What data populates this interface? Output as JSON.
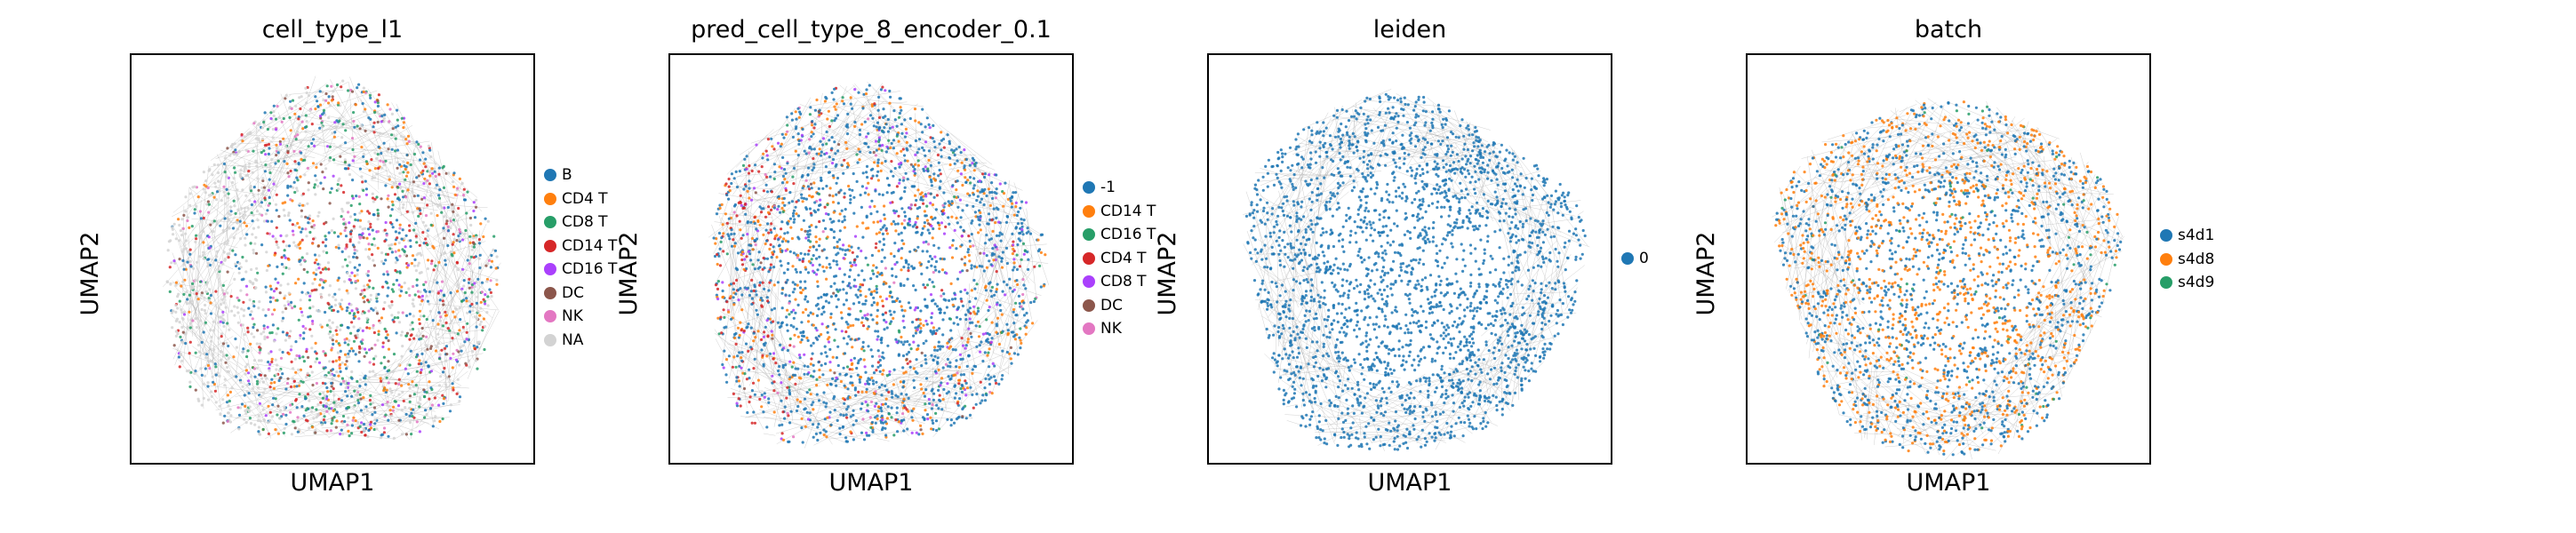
{
  "chart_data": [
    {
      "type": "scatter",
      "title": "cell_type_l1",
      "xlabel": "UMAP1",
      "ylabel": "UMAP2",
      "xticks": [],
      "yticks": [],
      "grid": false,
      "legend_placement": "right",
      "series": [
        {
          "name": "B",
          "color": "#1f77b4"
        },
        {
          "name": "CD4 T",
          "color": "#ff7f0e"
        },
        {
          "name": "CD8 T",
          "color": "#279e68"
        },
        {
          "name": "CD14 T",
          "color": "#d62728"
        },
        {
          "name": "CD16 T",
          "color": "#aa40fc"
        },
        {
          "name": "DC",
          "color": "#8c564b"
        },
        {
          "name": "NK",
          "color": "#e377c2"
        },
        {
          "name": "NA",
          "color": "#d3d3d3"
        }
      ]
    },
    {
      "type": "scatter",
      "title": "pred_cell_type_8_encoder_0.1",
      "xlabel": "UMAP1",
      "ylabel": "UMAP2",
      "xticks": [],
      "yticks": [],
      "grid": false,
      "legend_placement": "right",
      "series": [
        {
          "name": "-1",
          "color": "#1f77b4"
        },
        {
          "name": "CD14 T",
          "color": "#ff7f0e"
        },
        {
          "name": "CD16 T",
          "color": "#279e68"
        },
        {
          "name": "CD4 T",
          "color": "#d62728"
        },
        {
          "name": "CD8 T",
          "color": "#aa40fc"
        },
        {
          "name": "DC",
          "color": "#8c564b"
        },
        {
          "name": "NK",
          "color": "#e377c2"
        }
      ]
    },
    {
      "type": "scatter",
      "title": "leiden",
      "xlabel": "UMAP1",
      "ylabel": "UMAP2",
      "xticks": [],
      "yticks": [],
      "grid": false,
      "legend_placement": "right",
      "series": [
        {
          "name": "0",
          "color": "#1f77b4"
        }
      ]
    },
    {
      "type": "scatter",
      "title": "batch",
      "xlabel": "UMAP1",
      "ylabel": "UMAP2",
      "xticks": [],
      "yticks": [],
      "grid": false,
      "legend_placement": "right",
      "series": [
        {
          "name": "s4d1",
          "color": "#1f77b4"
        },
        {
          "name": "s4d8",
          "color": "#ff7f0e"
        },
        {
          "name": "s4d9",
          "color": "#279e68"
        }
      ]
    }
  ]
}
